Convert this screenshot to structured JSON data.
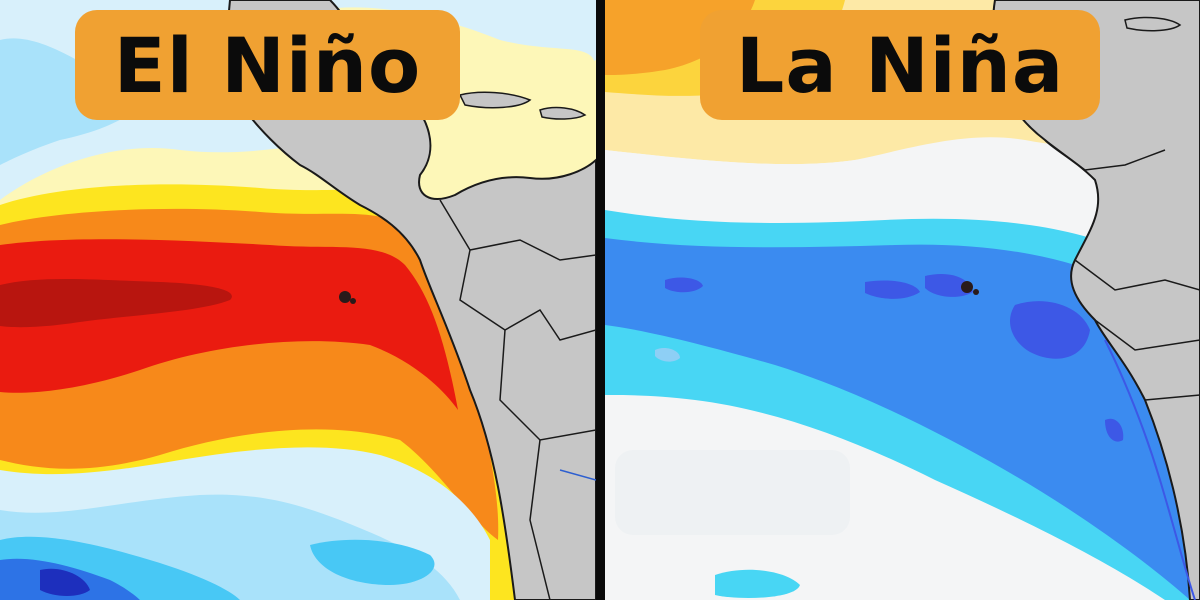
{
  "panels": [
    {
      "label": "El Niño",
      "condition": "warm-anomaly",
      "colors": {
        "deep_red": "#b8150f",
        "red": "#ea1b10",
        "orange": "#f7891a",
        "yellow": "#fde51f",
        "pale_yellow": "#fdf7b8",
        "light_blue": "#a9e2fa",
        "cyan": "#48c8f5",
        "blue": "#2d73e6",
        "navy": "#1d2fbd",
        "land": "#c6c6c6"
      }
    },
    {
      "label": "La Niña",
      "condition": "cool-anomaly",
      "colors": {
        "white": "#f4f5f6",
        "pale_yellow": "#fde9a6",
        "yellow": "#fcd43d",
        "orange": "#f6a22a",
        "cyan": "#48d6f4",
        "blue": "#3b8bf0",
        "dark_blue": "#3d58e6",
        "land": "#c6c6c6"
      }
    }
  ]
}
